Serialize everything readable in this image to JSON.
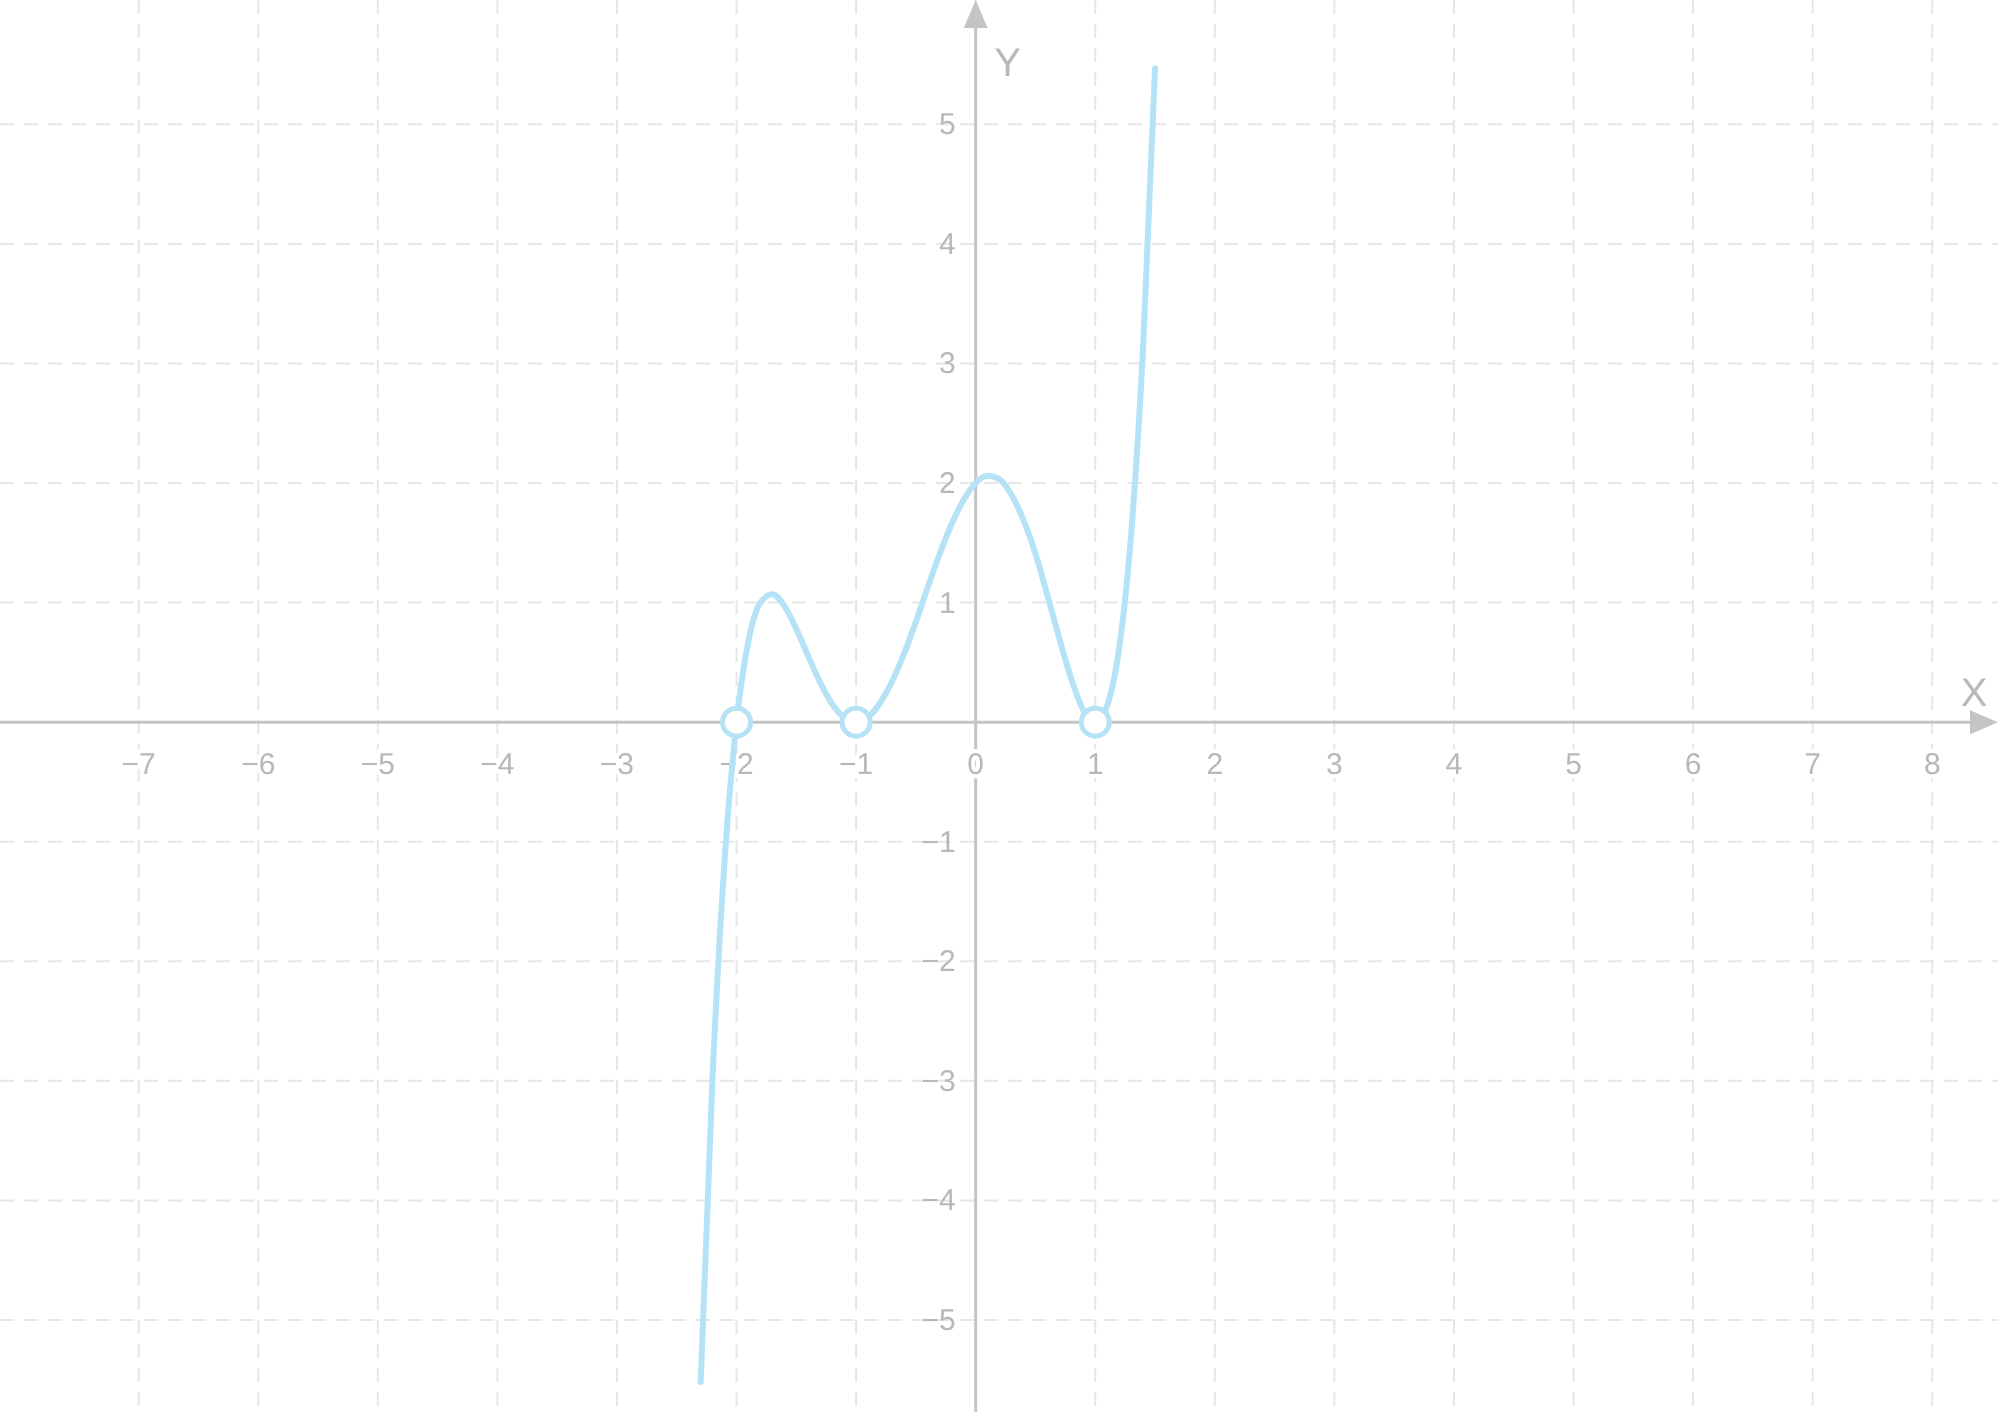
{
  "chart_data": {
    "type": "line",
    "xlabel": "X",
    "ylabel": "Y",
    "xlim": [
      -8.16,
      8.55
    ],
    "ylim": [
      -5.77,
      6.04
    ],
    "xticks": [
      {
        "value": -7,
        "label": "−7"
      },
      {
        "value": -6,
        "label": "−6"
      },
      {
        "value": -5,
        "label": "−5"
      },
      {
        "value": -4,
        "label": "−4"
      },
      {
        "value": -3,
        "label": "−3"
      },
      {
        "value": -2,
        "label": "−2"
      },
      {
        "value": -1,
        "label": "−1"
      },
      0,
      1,
      2,
      3,
      4,
      5,
      6,
      7,
      8
    ],
    "yticks": [
      {
        "value": -5,
        "label": "−5"
      },
      {
        "value": -4,
        "label": "−4"
      },
      {
        "value": -3,
        "label": "−3"
      },
      {
        "value": -2,
        "label": "−2"
      },
      {
        "value": -1,
        "label": "−1"
      },
      1,
      2,
      3,
      4,
      5
    ],
    "grid": true,
    "line_style": "solid",
    "series": [
      {
        "color": "#b5e3f5",
        "marker": "none",
        "x": [
          -2.3,
          -2.2,
          -2.1,
          -2,
          -1.9,
          -1.8,
          -1.7,
          -1.6,
          -1.5,
          -1.4,
          -1.3,
          -1.2,
          -1.1,
          -1,
          -0.9,
          -0.8,
          -0.7,
          -0.6,
          -0.5,
          -0.4,
          -0.3,
          -0.2,
          -0.1,
          0,
          0.1,
          0.2,
          0.3,
          0.4,
          0.5,
          0.6,
          0.7,
          0.8,
          0.9,
          1,
          1.1,
          1.2,
          1.3,
          1.4,
          1.5
        ],
        "values": [
          -5.52,
          -2.95,
          -1.16,
          0,
          0.68,
          1.0,
          1.07,
          0.97,
          0.78,
          0.55,
          0.33,
          0.15,
          0.04,
          0,
          0.04,
          0.16,
          0.34,
          0.57,
          0.84,
          1.13,
          1.41,
          1.66,
          1.86,
          2,
          2.06,
          2.03,
          1.9,
          1.69,
          1.41,
          1.06,
          0.7,
          0.36,
          0.1,
          0,
          0.14,
          0.62,
          1.57,
          3.13,
          5.47
        ]
      },
      {
        "type": "scatter",
        "color": "#b5e3f5",
        "marker": "circle",
        "x": [
          -2,
          -1,
          1
        ],
        "values": [
          0,
          0,
          0
        ]
      }
    ]
  }
}
